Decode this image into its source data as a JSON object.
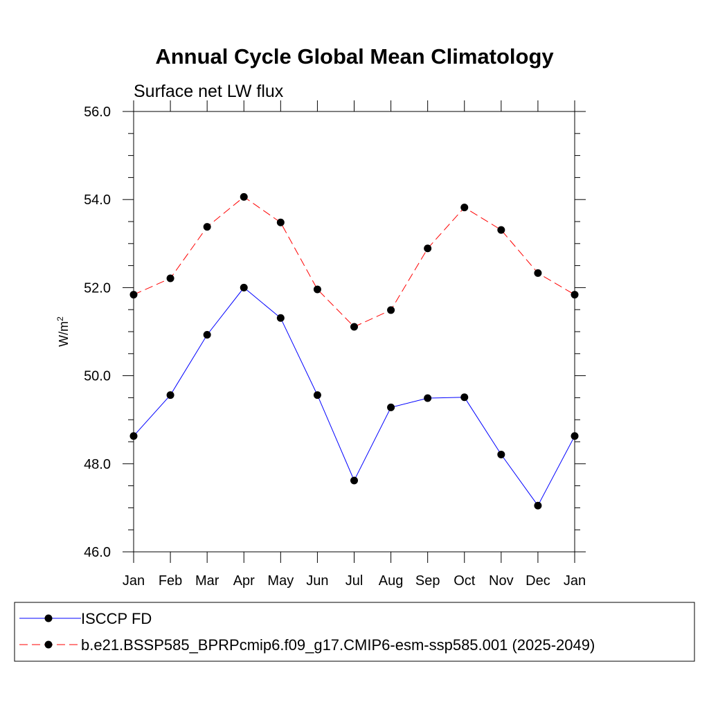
{
  "chart_data": {
    "type": "line",
    "title": "Annual Cycle Global Mean Climatology",
    "subtitle": "Surface net LW flux",
    "ylabel_base": "W/m",
    "ylabel_sup": "2",
    "xlabel": "",
    "categories": [
      "Jan",
      "Feb",
      "Mar",
      "Apr",
      "May",
      "Jun",
      "Jul",
      "Aug",
      "Sep",
      "Oct",
      "Nov",
      "Dec",
      "Jan"
    ],
    "ylim": [
      46.0,
      56.0
    ],
    "ytick_values": [
      46.0,
      48.0,
      50.0,
      52.0,
      54.0,
      56.0
    ],
    "ytick_labels": [
      "46.0",
      "48.0",
      "50.0",
      "52.0",
      "54.0",
      "56.0"
    ],
    "grid": false,
    "legend_position": "bottom",
    "series": [
      {
        "name": "ISCCP FD",
        "color": "#0000ff",
        "dash": "solid",
        "marker": "circle",
        "values": [
          48.63,
          49.56,
          50.93,
          52.0,
          51.31,
          49.56,
          47.62,
          49.28,
          49.49,
          49.51,
          48.21,
          47.05,
          48.63
        ]
      },
      {
        "name": "b.e21.BSSP585_BPRPcmip6.f09_g17.CMIP6-esm-ssp585.001 (2025-2049)",
        "color": "#ff0000",
        "dash": "dashed",
        "marker": "circle",
        "values": [
          51.84,
          52.21,
          53.38,
          54.06,
          53.48,
          51.96,
          51.11,
          51.49,
          52.89,
          53.82,
          53.31,
          52.33,
          51.84
        ]
      }
    ]
  }
}
